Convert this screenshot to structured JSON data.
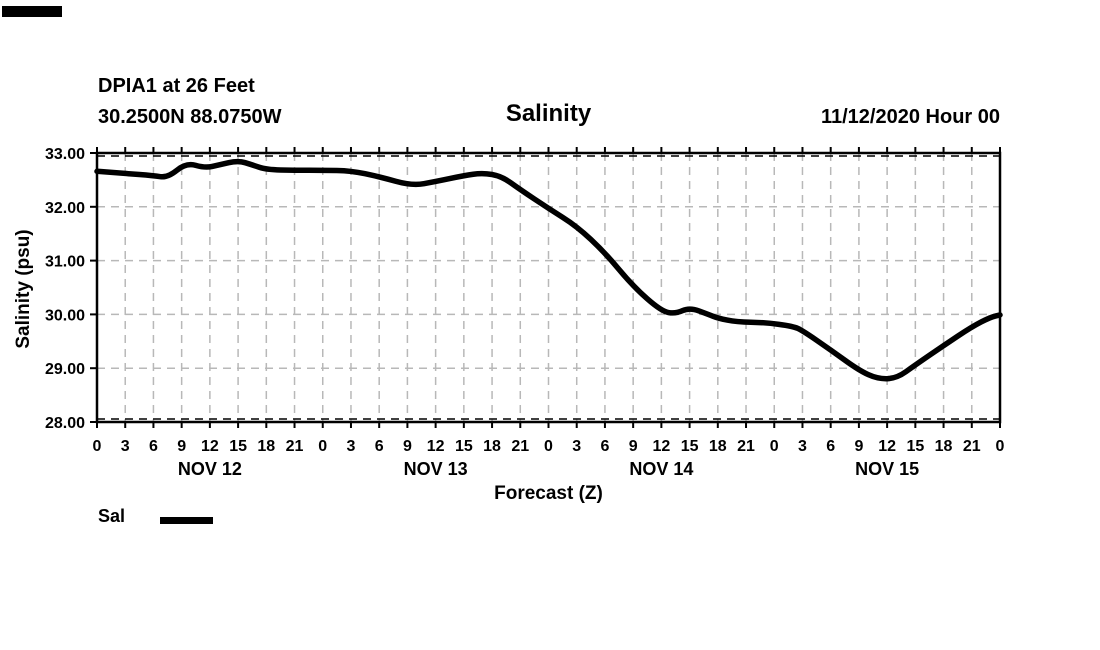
{
  "header": {
    "station_line1": "DPIA1 at 26 Feet",
    "station_line2": "30.2500N 88.0750W",
    "title": "Salinity",
    "datetime": "11/12/2020 Hour 00"
  },
  "legend": {
    "label": "Sal"
  },
  "colors": {
    "line": "#000000",
    "grid": "#b8b8b8",
    "frame": "#000000",
    "background": "#ffffff",
    "text": "#000000"
  },
  "chart_data": {
    "type": "line",
    "title": "Salinity",
    "xlabel": "Forecast (Z)",
    "ylabel": "Salinity (psu)",
    "ylim": [
      28,
      33
    ],
    "xlim_hours": [
      0,
      96
    ],
    "grid": "dashed",
    "legend_position": "bottom-left",
    "y_tick_labels": [
      "33.00",
      "32.00",
      "31.00",
      "30.00",
      "29.00",
      "28.00"
    ],
    "x_tick_interval_hours": 3,
    "x_tick_labels": [
      "0",
      "3",
      "6",
      "9",
      "12",
      "15",
      "18",
      "21",
      "0",
      "3",
      "6",
      "9",
      "12",
      "15",
      "18",
      "21",
      "0",
      "3",
      "6",
      "9",
      "12",
      "15",
      "18",
      "21",
      "0",
      "3",
      "6",
      "9",
      "12",
      "15",
      "18",
      "21",
      "0"
    ],
    "day_labels": [
      "NOV 12",
      "NOV 13",
      "NOV 14",
      "NOV 15"
    ],
    "series": [
      {
        "name": "Sal",
        "x_hours": [
          0,
          3,
          6,
          7.5,
          9.5,
          11.5,
          13,
          15,
          16.5,
          18,
          21,
          24,
          27,
          30,
          33.5,
          36,
          39,
          41,
          43,
          45,
          48,
          51,
          54,
          57,
          60,
          61.5,
          63,
          65,
          66,
          68,
          71,
          74,
          75,
          78,
          81,
          83,
          85,
          87,
          90,
          93,
          95,
          96
        ],
        "values": [
          32.66,
          32.62,
          32.58,
          32.54,
          32.82,
          32.72,
          32.78,
          32.86,
          32.78,
          32.69,
          32.68,
          32.68,
          32.67,
          32.56,
          32.39,
          32.47,
          32.58,
          32.63,
          32.57,
          32.32,
          31.97,
          31.64,
          31.15,
          30.52,
          30.06,
          30.01,
          30.13,
          30.0,
          29.93,
          29.86,
          29.85,
          29.78,
          29.7,
          29.34,
          28.96,
          28.8,
          28.81,
          29.06,
          29.42,
          29.77,
          29.95,
          29.99
        ]
      }
    ]
  }
}
